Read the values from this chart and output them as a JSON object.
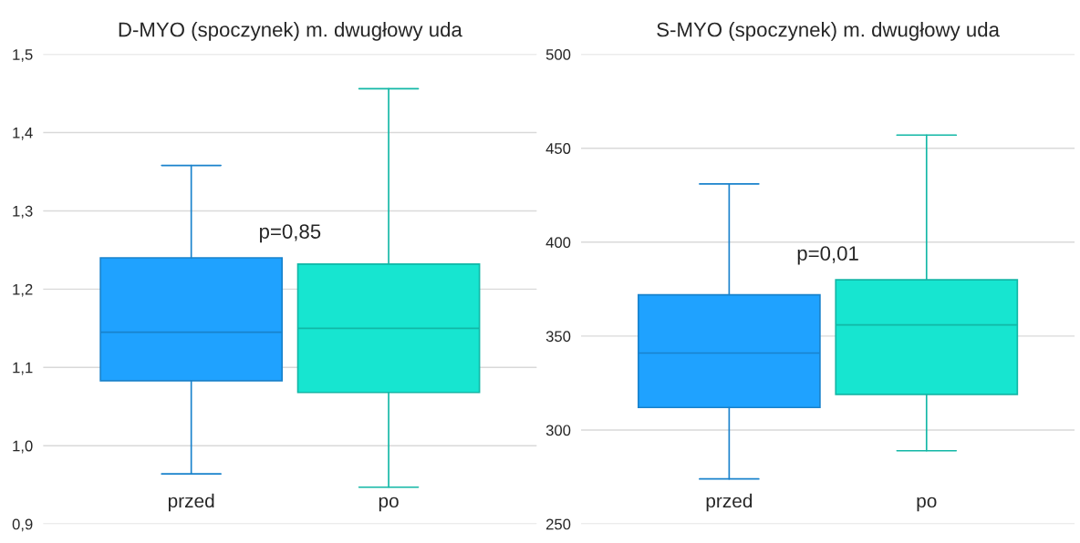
{
  "chart_data": [
    {
      "type": "box",
      "title": "D-MYO (spoczynek) m. dwugłowy uda",
      "categories": [
        "przed",
        "po"
      ],
      "colors": [
        "#1fa2ff",
        "#17e5d0"
      ],
      "boxes": [
        {
          "low": 0.964,
          "q1": 1.083,
          "median": 1.145,
          "q3": 1.24,
          "high": 1.358
        },
        {
          "low": 0.947,
          "q1": 1.068,
          "median": 1.15,
          "q3": 1.232,
          "high": 1.456
        }
      ],
      "ylim": [
        0.9,
        1.5
      ],
      "yticks": [
        {
          "value": 0.9,
          "label": "0,9"
        },
        {
          "value": 1.0,
          "label": "1,0"
        },
        {
          "value": 1.1,
          "label": "1,1"
        },
        {
          "value": 1.2,
          "label": "1,2"
        },
        {
          "value": 1.3,
          "label": "1,3"
        },
        {
          "value": 1.4,
          "label": "1,4"
        },
        {
          "value": 1.5,
          "label": "1,5"
        }
      ],
      "grid": "y",
      "annotations": [
        "p=0,85"
      ]
    },
    {
      "type": "box",
      "title": "S-MYO (spoczynek) m. dwugłowy uda",
      "categories": [
        "przed",
        "po"
      ],
      "colors": [
        "#1fa2ff",
        "#17e5d0"
      ],
      "boxes": [
        {
          "low": 274,
          "q1": 312,
          "median": 341,
          "q3": 372,
          "high": 431
        },
        {
          "low": 289,
          "q1": 319,
          "median": 356,
          "q3": 380,
          "high": 457
        }
      ],
      "ylim": [
        250,
        500
      ],
      "yticks": [
        250,
        300,
        350,
        400,
        450,
        500
      ],
      "grid": "y",
      "annotations": [
        "p=0,01"
      ]
    }
  ]
}
